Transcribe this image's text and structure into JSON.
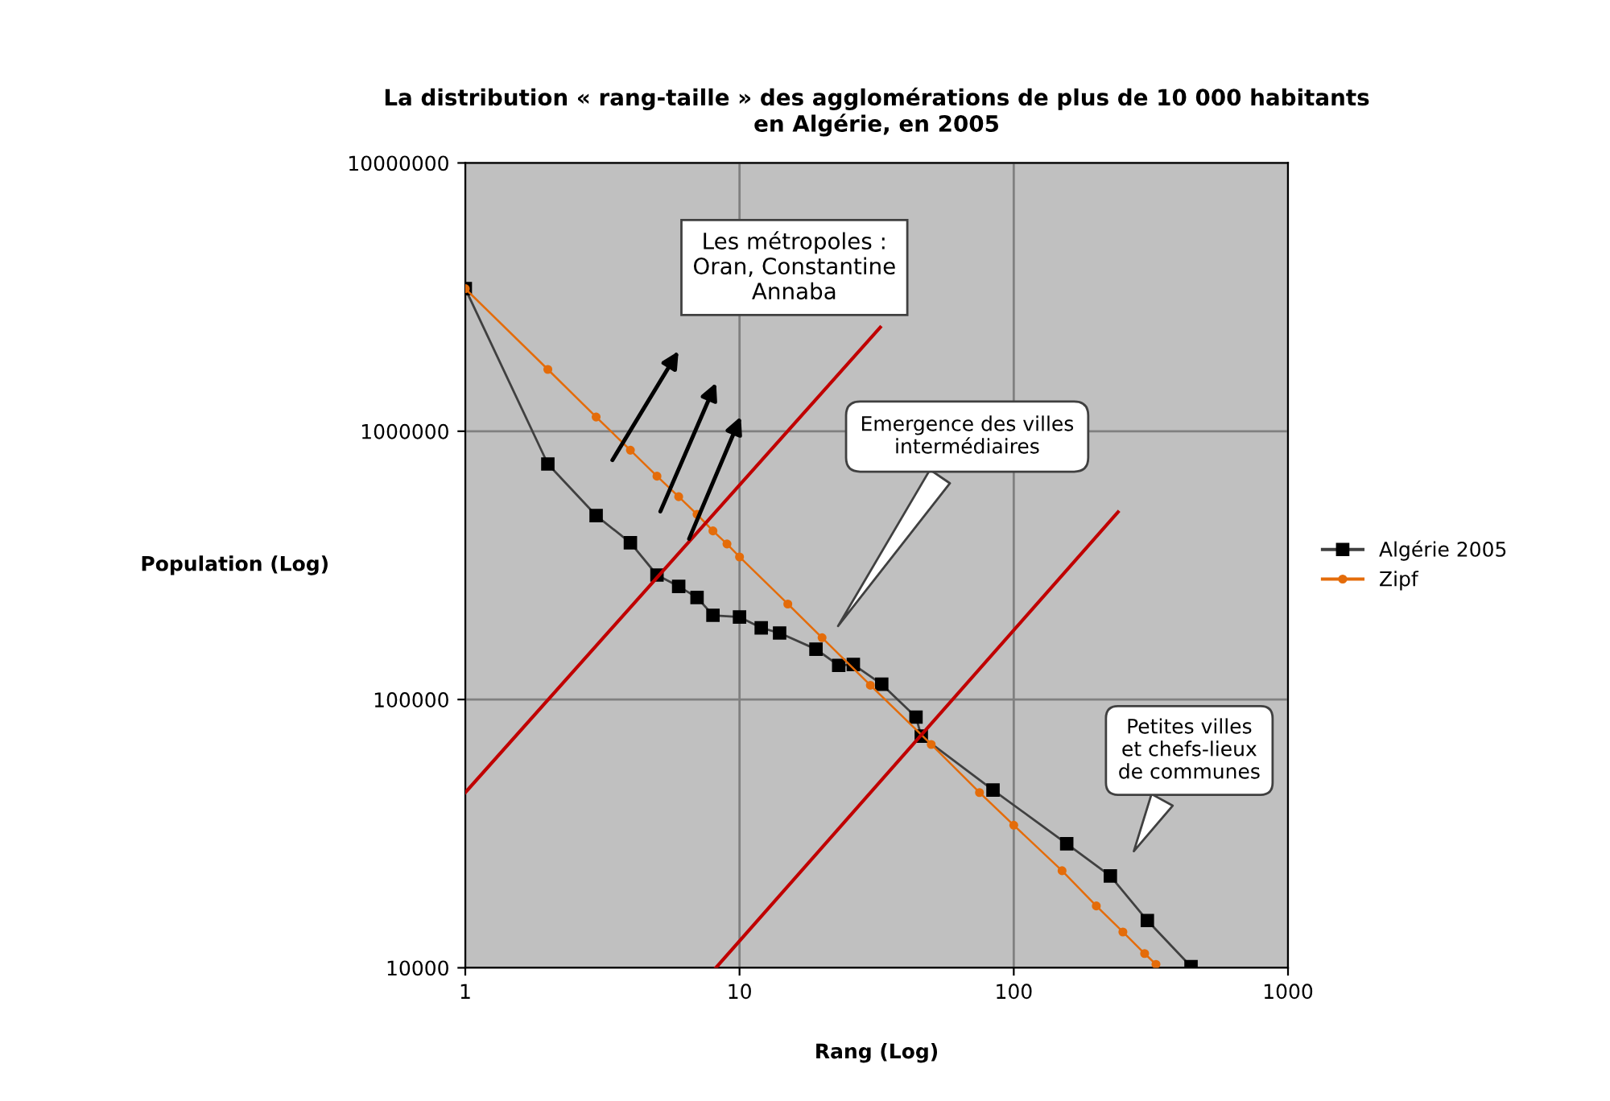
{
  "chart_data": {
    "type": "line",
    "title": "La distribution « rang-taille » des agglomérations de plus de 10 000 habitants\nen Algérie, en 2005",
    "xlabel": "Rang (Log)",
    "ylabel": "Population (Log)",
    "log": "xy",
    "xlim": [
      1,
      1000
    ],
    "ylim": [
      10000,
      10000000
    ],
    "xticks": [
      1,
      10,
      100,
      1000
    ],
    "yticks": [
      10000,
      100000,
      1000000,
      10000000
    ],
    "grid": true,
    "legend": "right",
    "annotations": [
      "Les métropoles :\nOran, Constantine\nAnnaba",
      "Emergence des villes\nintermédiaires",
      "Petites villes\net chefs-lieux\nde communes"
    ],
    "series": [
      {
        "name": "Algérie 2005",
        "color": "#000000",
        "marker": "square",
        "x": [
          1,
          2,
          3,
          4,
          5,
          6,
          7,
          8,
          10,
          12,
          14,
          19,
          23,
          26,
          33,
          44,
          46,
          84,
          156,
          225,
          307,
          443
        ],
        "values": [
          3400000,
          755000,
          485000,
          384000,
          291000,
          264000,
          240000,
          206000,
          203000,
          185000,
          177000,
          154000,
          134000,
          135000,
          114000,
          86000,
          73000,
          46000,
          29000,
          22000,
          15000,
          10100
        ]
      },
      {
        "name": "Zipf",
        "color": "#e46c0a",
        "marker": "circle",
        "x": [
          1,
          2,
          3,
          4,
          5,
          6,
          7,
          8,
          9,
          10,
          15,
          20,
          30,
          50,
          75,
          100,
          150,
          200,
          250,
          300,
          330
        ],
        "values": [
          3400000,
          1700000,
          1130000,
          850000,
          680000,
          570000,
          490000,
          425000,
          380000,
          340000,
          227000,
          170000,
          113000,
          68000,
          45000,
          34000,
          23000,
          17000,
          13600,
          11300,
          10300
        ]
      },
      {
        "color": "#c00000",
        "marker": "none",
        "x": [
          1,
          32.6
        ],
        "values": [
          45000,
          2440000
        ]
      },
      {
        "color": "#c00000",
        "marker": "none",
        "x": [
          8.2,
          240
        ],
        "values": [
          10000,
          500000
        ]
      }
    ]
  }
}
